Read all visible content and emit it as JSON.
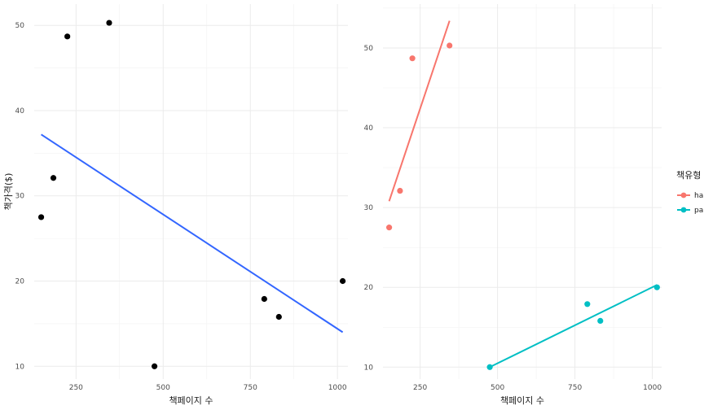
{
  "chart_data": [
    {
      "type": "scatter",
      "xlabel": "책페이지 수",
      "ylabel": "책가격($)",
      "xlim": [
        130,
        1030
      ],
      "ylim": [
        8.5,
        52.5
      ],
      "xticks": [
        250,
        500,
        750,
        1000
      ],
      "yticks": [
        10,
        20,
        30,
        40,
        50
      ],
      "grid": true,
      "points": [
        {
          "x": 150,
          "y": 27.5
        },
        {
          "x": 185,
          "y": 32.1
        },
        {
          "x": 225,
          "y": 48.7
        },
        {
          "x": 345,
          "y": 50.3
        },
        {
          "x": 475,
          "y": 10.0
        },
        {
          "x": 790,
          "y": 17.9
        },
        {
          "x": 832,
          "y": 15.8
        },
        {
          "x": 1015,
          "y": 20.0
        }
      ],
      "point_color": "#000000",
      "fit_line": {
        "x": [
          150,
          1015
        ],
        "y": [
          37.2,
          14.0
        ],
        "color": "#3366FF"
      }
    },
    {
      "type": "scatter",
      "xlabel": "책페이지 수",
      "ylabel": "",
      "xlim": [
        130,
        1030
      ],
      "ylim": [
        8.5,
        55.5
      ],
      "xticks": [
        250,
        500,
        750,
        1000
      ],
      "yticks": [
        10,
        20,
        30,
        40,
        50
      ],
      "grid": true,
      "legend_title": "책유형",
      "legend_position": "right",
      "series": [
        {
          "name": "ha",
          "color": "#F8766D",
          "points": [
            {
              "x": 150,
              "y": 27.5
            },
            {
              "x": 185,
              "y": 32.1
            },
            {
              "x": 225,
              "y": 48.7
            },
            {
              "x": 345,
              "y": 50.3
            }
          ],
          "fit_line": {
            "x": [
              150,
              345
            ],
            "y": [
              30.8,
              53.4
            ]
          }
        },
        {
          "name": "pa",
          "color": "#00BFC4",
          "points": [
            {
              "x": 475,
              "y": 10.0
            },
            {
              "x": 790,
              "y": 17.9
            },
            {
              "x": 832,
              "y": 15.8
            },
            {
              "x": 1015,
              "y": 20.0
            }
          ],
          "fit_line": {
            "x": [
              475,
              1015
            ],
            "y": [
              10.0,
              20.3
            ]
          }
        }
      ]
    }
  ]
}
